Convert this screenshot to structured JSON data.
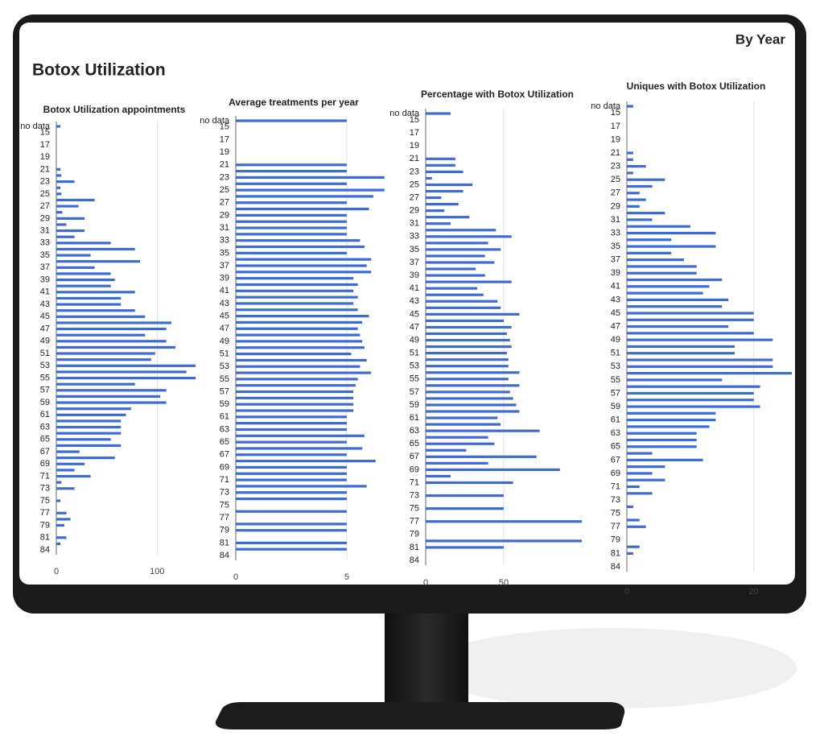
{
  "header": {
    "title": "Botox Utilization",
    "link": "By Year"
  },
  "chart_data": [
    {
      "type": "bar",
      "orientation": "horizontal",
      "title": "Botox Utilization appointments",
      "color": "#3b6bd6",
      "grid": true,
      "categories": [
        "no data",
        "15",
        null,
        "17",
        null,
        "19",
        null,
        "21",
        null,
        "23",
        null,
        "25",
        null,
        "27",
        null,
        "29",
        null,
        "31",
        null,
        "33",
        null,
        "35",
        null,
        "37",
        null,
        "39",
        null,
        "41",
        null,
        "43",
        null,
        "45",
        null,
        "47",
        null,
        "49",
        null,
        "51",
        null,
        "53",
        null,
        "55",
        null,
        "57",
        null,
        "59",
        null,
        "61",
        null,
        "63",
        null,
        "65",
        null,
        "67",
        null,
        "69",
        null,
        "71",
        null,
        "73",
        null,
        "75",
        null,
        "77",
        null,
        "79",
        null,
        "81",
        null,
        "84"
      ],
      "values": [
        4,
        0,
        0,
        0,
        0,
        0,
        0,
        4,
        5,
        18,
        4,
        5,
        38,
        22,
        6,
        28,
        10,
        28,
        18,
        54,
        78,
        34,
        83,
        38,
        54,
        58,
        54,
        78,
        64,
        64,
        78,
        88,
        114,
        109,
        88,
        109,
        118,
        98,
        94,
        138,
        129,
        138,
        78,
        109,
        103,
        109,
        74,
        69,
        64,
        64,
        64,
        54,
        64,
        23,
        58,
        28,
        18,
        34,
        5,
        18,
        0,
        4,
        0,
        10,
        14,
        8,
        0,
        10,
        4,
        0
      ],
      "xlim": [
        0,
        142
      ],
      "xticks": [
        0,
        100
      ]
    },
    {
      "type": "bar",
      "orientation": "horizontal",
      "title": "Average treatments per year",
      "color": "#3b6bd6",
      "grid": true,
      "categories": [
        "no data",
        "15",
        null,
        "17",
        null,
        "19",
        null,
        "21",
        null,
        "23",
        null,
        "25",
        null,
        "27",
        null,
        "29",
        null,
        "31",
        null,
        "33",
        null,
        "35",
        null,
        "37",
        null,
        "39",
        null,
        "41",
        null,
        "43",
        null,
        "45",
        null,
        "47",
        null,
        "49",
        null,
        "51",
        null,
        "53",
        null,
        "55",
        null,
        "57",
        null,
        "59",
        null,
        "61",
        null,
        "63",
        null,
        "65",
        null,
        "67",
        null,
        "69",
        null,
        "71",
        null,
        "73",
        null,
        "75",
        null,
        "77",
        null,
        "79",
        null,
        "81",
        null,
        "84"
      ],
      "values": [
        5,
        0,
        0,
        0,
        0,
        0,
        0,
        5,
        5,
        6.7,
        5,
        6.7,
        6.2,
        5,
        6,
        5,
        5,
        5,
        5,
        5.6,
        5.8,
        5,
        6.1,
        5.9,
        6.1,
        5.3,
        5.5,
        5.3,
        5.5,
        5.3,
        5.5,
        6,
        5.7,
        5.5,
        5.6,
        5.7,
        5.8,
        5.2,
        5.9,
        5.6,
        6.1,
        5.5,
        5.4,
        5.3,
        5.3,
        5.3,
        5.3,
        5,
        5,
        5,
        5.8,
        5,
        5.7,
        5,
        6.3,
        5,
        5,
        5,
        5.9,
        5,
        5,
        0,
        5,
        0,
        5,
        5,
        0,
        5,
        5,
        0
      ],
      "xlim": [
        0,
        6.6
      ],
      "xticks": [
        0,
        5
      ]
    },
    {
      "type": "bar",
      "orientation": "horizontal",
      "title": "Percentage with Botox Utilization",
      "color": "#3b6bd6",
      "grid": true,
      "categories": [
        "no data",
        "15",
        null,
        "17",
        null,
        "19",
        null,
        "21",
        null,
        "23",
        null,
        "25",
        null,
        "27",
        null,
        "29",
        null,
        "31",
        null,
        "33",
        null,
        "35",
        null,
        "37",
        null,
        "39",
        null,
        "41",
        null,
        "43",
        null,
        "45",
        null,
        "47",
        null,
        "49",
        null,
        "51",
        null,
        "53",
        null,
        "55",
        null,
        "57",
        null,
        "59",
        null,
        "61",
        null,
        "63",
        null,
        "65",
        null,
        "67",
        null,
        "69",
        null,
        "71",
        null,
        "73",
        null,
        "75",
        null,
        "77",
        null,
        "79",
        null,
        "81",
        null,
        "84"
      ],
      "values": [
        16,
        0,
        0,
        0,
        0,
        0,
        0,
        19,
        19,
        24,
        4,
        30,
        24,
        10,
        21,
        12,
        28,
        16,
        45,
        55,
        40,
        48,
        38,
        44,
        32,
        38,
        55,
        33,
        37,
        46,
        48,
        60,
        50,
        55,
        52,
        54,
        55,
        52,
        53,
        53,
        60,
        53,
        60,
        54,
        56,
        58,
        60,
        46,
        48,
        73,
        40,
        44,
        26,
        71,
        40,
        86,
        16,
        56,
        0,
        50,
        0,
        50,
        0,
        100,
        0,
        0,
        100,
        50,
        0,
        0
      ],
      "xlim": [
        0,
        100
      ],
      "xticks": [
        0,
        50
      ]
    },
    {
      "type": "bar",
      "orientation": "horizontal",
      "title": "Uniques with Botox Utilization",
      "color": "#3b6bd6",
      "grid": true,
      "categories": [
        "no data",
        "15",
        null,
        "17",
        null,
        "19",
        null,
        "21",
        null,
        "23",
        null,
        "25",
        null,
        "27",
        null,
        "29",
        null,
        "31",
        null,
        "33",
        null,
        "35",
        null,
        "37",
        null,
        "39",
        null,
        "41",
        null,
        "43",
        null,
        "45",
        null,
        "47",
        null,
        "49",
        null,
        "51",
        null,
        "53",
        null,
        "55",
        null,
        "57",
        null,
        "59",
        null,
        "61",
        null,
        "63",
        null,
        "65",
        null,
        "67",
        null,
        "69",
        null,
        "71",
        null,
        "73",
        null,
        "75",
        null,
        "77",
        null,
        "79",
        null,
        "81",
        null,
        "84"
      ],
      "values": [
        1,
        0,
        0,
        0,
        0,
        0,
        0,
        1,
        1,
        3,
        1,
        6,
        4,
        2,
        3,
        2,
        6,
        4,
        10,
        14,
        7,
        14,
        7,
        9,
        11,
        11,
        15,
        13,
        12,
        16,
        15,
        20,
        20,
        16,
        20,
        23,
        17,
        17,
        23,
        23,
        26,
        15,
        21,
        20,
        20,
        21,
        14,
        14,
        13,
        11,
        11,
        11,
        4,
        12,
        6,
        4,
        6,
        2,
        4,
        0,
        1,
        0,
        2,
        3,
        0,
        0,
        2,
        1,
        0,
        0
      ],
      "xlim": [
        0,
        26
      ],
      "xticks": [
        0,
        20
      ]
    }
  ]
}
